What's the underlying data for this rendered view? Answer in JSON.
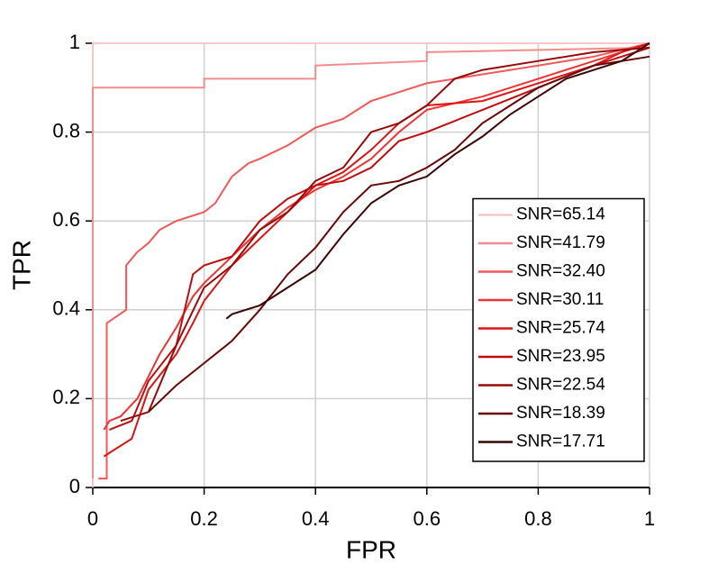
{
  "chart_data": {
    "type": "line",
    "xlabel": "FPR",
    "ylabel": "TPR",
    "xlim": [
      0,
      1
    ],
    "ylim": [
      0,
      1
    ],
    "xticks": [
      0,
      0.2,
      0.4,
      0.6,
      0.8,
      1
    ],
    "yticks": [
      0,
      0.2,
      0.4,
      0.6,
      0.8,
      1
    ],
    "grid": true,
    "legend": "lower right",
    "series": [
      {
        "name": "SNR=65.14",
        "color": "#f7c6c6",
        "x": [
          0,
          0,
          1
        ],
        "values": [
          0,
          1,
          1
        ]
      },
      {
        "name": "SNR=41.79",
        "color": "#f48c8c",
        "x": [
          0,
          0,
          0.2,
          0.2,
          0.4,
          0.4,
          0.6,
          0.6,
          1
        ],
        "values": [
          0.02,
          0.9,
          0.9,
          0.92,
          0.92,
          0.95,
          0.96,
          0.98,
          0.99
        ]
      },
      {
        "name": "SNR=32.40",
        "color": "#f25858",
        "x": [
          0.01,
          0.025,
          0.025,
          0.06,
          0.06,
          0.08,
          0.1,
          0.12,
          0.15,
          0.2,
          0.22,
          0.23,
          0.25,
          0.28,
          0.3,
          0.35,
          0.4,
          0.45,
          0.5,
          0.55,
          0.6,
          0.7,
          0.8,
          0.9,
          1
        ],
        "values": [
          0.02,
          0.02,
          0.37,
          0.4,
          0.5,
          0.53,
          0.55,
          0.58,
          0.6,
          0.62,
          0.64,
          0.66,
          0.7,
          0.73,
          0.74,
          0.77,
          0.81,
          0.83,
          0.87,
          0.89,
          0.91,
          0.93,
          0.95,
          0.97,
          1
        ]
      },
      {
        "name": "SNR=30.11",
        "color": "#f03232",
        "x": [
          0.02,
          0.03,
          0.05,
          0.08,
          0.1,
          0.12,
          0.15,
          0.18,
          0.2,
          0.25,
          0.3,
          0.35,
          0.4,
          0.45,
          0.5,
          0.55,
          0.6,
          0.7,
          0.8,
          0.9,
          1
        ],
        "values": [
          0.13,
          0.15,
          0.16,
          0.2,
          0.25,
          0.3,
          0.36,
          0.43,
          0.46,
          0.52,
          0.58,
          0.63,
          0.67,
          0.7,
          0.74,
          0.8,
          0.85,
          0.88,
          0.92,
          0.96,
          1
        ]
      },
      {
        "name": "SNR=25.74",
        "color": "#e01212",
        "x": [
          0.02,
          0.07,
          0.1,
          0.15,
          0.18,
          0.2,
          0.25,
          0.3,
          0.35,
          0.4,
          0.45,
          0.5,
          0.55,
          0.6,
          0.7,
          0.8,
          0.9,
          0.95,
          1
        ],
        "values": [
          0.07,
          0.11,
          0.22,
          0.3,
          0.37,
          0.42,
          0.5,
          0.56,
          0.62,
          0.68,
          0.71,
          0.76,
          0.82,
          0.86,
          0.87,
          0.91,
          0.95,
          0.98,
          1
        ]
      },
      {
        "name": "SNR=23.95",
        "color": "#c00c0c",
        "x": [
          0.03,
          0.07,
          0.1,
          0.15,
          0.18,
          0.2,
          0.25,
          0.3,
          0.35,
          0.4,
          0.45,
          0.5,
          0.55,
          0.6,
          0.7,
          0.8,
          0.9,
          1
        ],
        "values": [
          0.13,
          0.15,
          0.24,
          0.32,
          0.48,
          0.5,
          0.52,
          0.6,
          0.65,
          0.68,
          0.69,
          0.72,
          0.78,
          0.8,
          0.85,
          0.9,
          0.95,
          0.99
        ]
      },
      {
        "name": "SNR=22.54",
        "color": "#960a0a",
        "x": [
          0.05,
          0.1,
          0.15,
          0.2,
          0.25,
          0.3,
          0.35,
          0.4,
          0.45,
          0.5,
          0.55,
          0.6,
          0.65,
          0.7,
          0.8,
          0.9,
          1
        ],
        "values": [
          0.15,
          0.17,
          0.32,
          0.45,
          0.5,
          0.58,
          0.62,
          0.69,
          0.72,
          0.8,
          0.82,
          0.86,
          0.92,
          0.94,
          0.96,
          0.98,
          0.99
        ]
      },
      {
        "name": "SNR=18.39",
        "color": "#6a0606",
        "x": [
          0.1,
          0.15,
          0.2,
          0.25,
          0.3,
          0.35,
          0.4,
          0.45,
          0.5,
          0.55,
          0.6,
          0.65,
          0.7,
          0.75,
          0.8,
          0.9,
          1
        ],
        "values": [
          0.17,
          0.23,
          0.28,
          0.33,
          0.4,
          0.48,
          0.54,
          0.62,
          0.68,
          0.69,
          0.72,
          0.76,
          0.82,
          0.86,
          0.9,
          0.95,
          0.97
        ]
      },
      {
        "name": "SNR=17.71",
        "color": "#3c0505",
        "x": [
          0.24,
          0.25,
          0.3,
          0.35,
          0.4,
          0.45,
          0.5,
          0.55,
          0.6,
          0.65,
          0.7,
          0.75,
          0.8,
          0.85,
          0.9,
          0.95,
          1
        ],
        "values": [
          0.38,
          0.39,
          0.41,
          0.45,
          0.49,
          0.57,
          0.64,
          0.68,
          0.7,
          0.75,
          0.79,
          0.84,
          0.88,
          0.92,
          0.94,
          0.96,
          1
        ]
      }
    ]
  }
}
